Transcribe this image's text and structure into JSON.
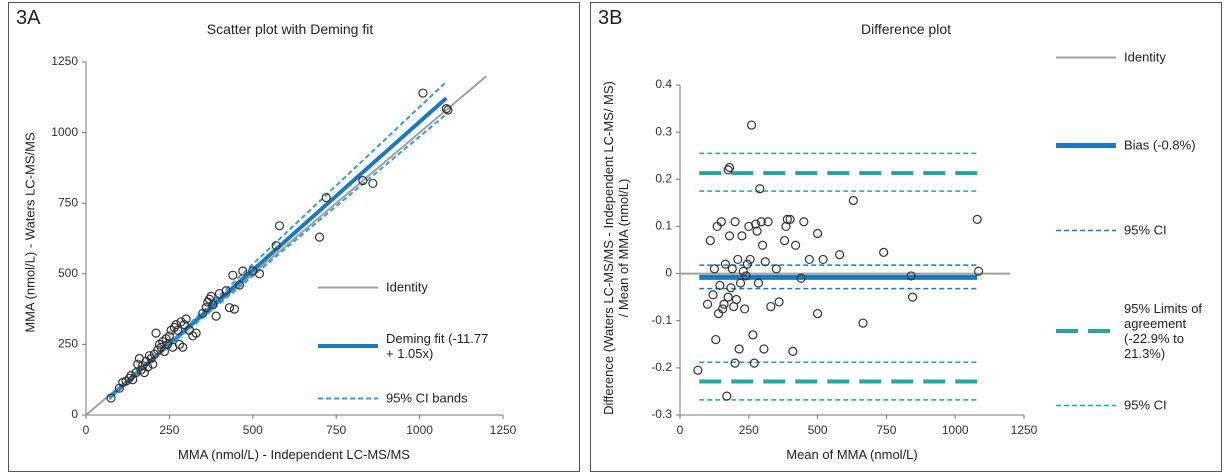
{
  "chart_data": [
    {
      "type": "scatter",
      "panel_label": "3A",
      "title": "Scatter plot with Deming fit",
      "xlabel": "MMA (nmol/L) - Independent LC-MS/MS",
      "ylabel": "MMA (nmol/L) - Waters LC-MS/MS",
      "xlim": [
        0,
        1250
      ],
      "ylim": [
        0,
        1250
      ],
      "xticks": [
        0,
        250,
        500,
        750,
        1000,
        1250
      ],
      "yticks": [
        0,
        250,
        500,
        750,
        1000,
        1250
      ],
      "points": {
        "color": "#333333",
        "x": [
          75,
          100,
          110,
          120,
          130,
          135,
          140,
          150,
          155,
          160,
          165,
          170,
          175,
          180,
          185,
          190,
          195,
          200,
          205,
          210,
          215,
          220,
          225,
          230,
          235,
          240,
          245,
          250,
          255,
          260,
          265,
          270,
          275,
          280,
          285,
          290,
          295,
          300,
          310,
          320,
          330,
          350,
          360,
          365,
          370,
          375,
          380,
          390,
          400,
          420,
          430,
          440,
          445,
          460,
          470,
          500,
          520,
          570,
          580,
          700,
          720,
          830,
          860,
          1010,
          1080,
          1085
        ],
        "y": [
          60,
          95,
          115,
          120,
          130,
          140,
          125,
          150,
          180,
          200,
          160,
          175,
          150,
          190,
          170,
          210,
          200,
          180,
          215,
          290,
          230,
          250,
          240,
          260,
          225,
          270,
          250,
          280,
          300,
          240,
          310,
          320,
          300,
          250,
          330,
          240,
          320,
          340,
          300,
          280,
          290,
          360,
          380,
          400,
          410,
          420,
          390,
          350,
          430,
          440,
          380,
          495,
          375,
          460,
          510,
          510,
          500,
          600,
          670,
          630,
          770,
          830,
          820,
          1140,
          1085,
          1080
        ]
      },
      "series": [
        {
          "name": "Identity",
          "color": "#a0a0a0",
          "width": 2,
          "dash": false,
          "x": [
            0,
            1200
          ],
          "y": [
            0,
            1200
          ]
        },
        {
          "name": "Deming fit (-11.77 + 1.05x)",
          "color": "#1a7abf",
          "width": 4,
          "dash": false,
          "x": [
            70,
            1080
          ],
          "y": [
            61.73,
            1122.23
          ]
        },
        {
          "name": "95% CI bands",
          "color": "#3b9bd6",
          "width": 2,
          "dash": true,
          "x": [
            70,
            1080,
            null,
            70,
            1080
          ],
          "y": [
            55,
            1180,
            null,
            68,
            1065
          ]
        }
      ]
    },
    {
      "type": "scatter",
      "panel_label": "3B",
      "title": "Difference plot",
      "xlabel": "Mean of MMA (nmol/L)",
      "ylabel": "Difference (Waters LC-MS/MS - Independent LC-MS/ MS) / Mean of MMA (nmol/L)",
      "xlim": [
        0,
        1250
      ],
      "ylim": [
        -0.3,
        0.4
      ],
      "xticks": [
        0,
        250,
        500,
        750,
        1000,
        1250
      ],
      "yticks": [
        -0.3,
        -0.2,
        -0.1,
        0,
        0.1,
        0.2,
        0.3,
        0.4
      ],
      "points": {
        "color": "#333333",
        "x": [
          65,
          100,
          110,
          120,
          125,
          130,
          135,
          140,
          145,
          150,
          155,
          160,
          165,
          170,
          175,
          175,
          180,
          180,
          185,
          190,
          195,
          200,
          200,
          205,
          210,
          215,
          220,
          225,
          230,
          235,
          240,
          245,
          250,
          255,
          260,
          265,
          270,
          275,
          280,
          285,
          290,
          295,
          300,
          305,
          310,
          320,
          330,
          350,
          360,
          380,
          385,
          390,
          400,
          410,
          420,
          440,
          450,
          470,
          500,
          500,
          520,
          580,
          630,
          665,
          740,
          840,
          845,
          1080,
          1085
        ],
        "y": [
          -0.205,
          -0.065,
          0.07,
          -0.045,
          0.01,
          -0.14,
          0.1,
          -0.085,
          -0.025,
          0.11,
          -0.075,
          -0.065,
          0.02,
          -0.26,
          0.22,
          -0.05,
          0.225,
          0.08,
          -0.03,
          0.01,
          -0.07,
          -0.19,
          0.11,
          -0.055,
          0.03,
          -0.16,
          -0.02,
          0.08,
          0.005,
          -0.075,
          -0.005,
          0.02,
          0.1,
          0.03,
          0.315,
          -0.13,
          -0.19,
          0.105,
          0.09,
          -0.02,
          0.18,
          0.11,
          0.06,
          -0.16,
          0.025,
          0.11,
          -0.07,
          0.01,
          -0.06,
          0.07,
          0.1,
          0.115,
          0.115,
          -0.165,
          0.06,
          -0.01,
          0.11,
          0.03,
          0.085,
          -0.085,
          0.03,
          0.04,
          0.155,
          -0.105,
          0.045,
          -0.005,
          -0.05,
          0.115,
          0.005
        ]
      },
      "series": [
        {
          "name": "Identity",
          "color": "#a0a0a0",
          "width": 2,
          "dash": false,
          "x": [
            0,
            1200
          ],
          "y": [
            0,
            0
          ]
        },
        {
          "name": "Bias (-0.8%)",
          "color": "#1a7abf",
          "width": 5,
          "dash": false,
          "x": [
            70,
            1080
          ],
          "y": [
            -0.008,
            -0.008
          ]
        },
        {
          "name": "95% CI",
          "color": "#1a7abf",
          "width": 1.5,
          "dash": true,
          "x": [
            70,
            1080,
            null,
            70,
            1080
          ],
          "y": [
            0.018,
            0.018,
            null,
            -0.032,
            -0.032
          ]
        },
        {
          "name": "95% Limits of agreement (-22.9% to 21.3%)",
          "color": "#22a89a",
          "width": 4,
          "dash": true,
          "x": [
            70,
            1080,
            null,
            70,
            1080
          ],
          "y": [
            0.213,
            0.213,
            null,
            -0.229,
            -0.229
          ]
        },
        {
          "name": "95% CI",
          "color": "#22a89a",
          "width": 1.5,
          "dash": true,
          "x": [
            70,
            1080,
            null,
            70,
            1080,
            null,
            70,
            1080,
            null,
            70,
            1080
          ],
          "y": [
            0.255,
            0.255,
            null,
            0.175,
            0.175,
            null,
            -0.188,
            -0.188,
            null,
            -0.268,
            -0.268
          ]
        }
      ]
    }
  ]
}
